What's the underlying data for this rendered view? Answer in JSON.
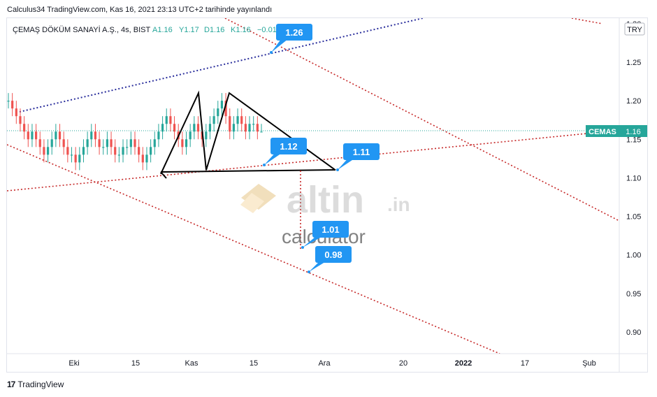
{
  "header": {
    "publish_line": "Calculus34 TradingView.com, Kas 16, 2021 23:13 UTC+2 tarihinde yayınlandı"
  },
  "footer": {
    "logo": "17",
    "brand": "TradingView"
  },
  "currency_badge": "TRY",
  "price_tag": {
    "symbol": "CEMAS",
    "value": "1.16"
  },
  "watermark": {
    "brand": "altin",
    "suffix": ".in",
    "sub": "calculator"
  },
  "colors": {
    "up": "#26a69a",
    "down": "#ef5350",
    "callout": "#2196f3",
    "trend_blue": "#2a2e9c",
    "trend_red": "#c62828",
    "price_line": "#26a69a"
  },
  "chart_data": {
    "type": "candlestick",
    "title": "ÇEMAŞ DÖKÜM SANAYİ A.Ş., 4s, BIST",
    "ohlc": {
      "open": "A1.16",
      "high": "Y1.17",
      "low": "D1.16",
      "close": "K1.16",
      "change": "−0.01"
    },
    "y_ticks": [
      "1.30",
      "1.25",
      "1.20",
      "1.15",
      "1.10",
      "1.05",
      "1.00",
      "0.95",
      "0.90"
    ],
    "x_ticks": [
      "Eki",
      "15",
      "Kas",
      "15",
      "Ara",
      "20",
      "2022",
      "17",
      "Şub"
    ],
    "ylim": [
      0.87,
      1.31
    ],
    "last_price": 1.16,
    "annotations": [
      {
        "label": "1.26",
        "value": 1.26
      },
      {
        "label": "1.12",
        "value": 1.12
      },
      {
        "label": "1.11",
        "value": 1.11
      },
      {
        "label": "1.01",
        "value": 1.01
      },
      {
        "label": "0.98",
        "value": 0.98
      }
    ],
    "pattern_points": [
      1.105,
      1.21,
      1.11,
      1.21,
      1.11
    ],
    "candles": [
      [
        1.2,
        1.21,
        1.19,
        1.2
      ],
      [
        1.2,
        1.21,
        1.18,
        1.19
      ],
      [
        1.19,
        1.2,
        1.17,
        1.18
      ],
      [
        1.18,
        1.19,
        1.16,
        1.17
      ],
      [
        1.17,
        1.18,
        1.15,
        1.16
      ],
      [
        1.16,
        1.17,
        1.14,
        1.15
      ],
      [
        1.15,
        1.17,
        1.14,
        1.16
      ],
      [
        1.16,
        1.17,
        1.14,
        1.15
      ],
      [
        1.15,
        1.16,
        1.13,
        1.14
      ],
      [
        1.14,
        1.15,
        1.12,
        1.13
      ],
      [
        1.13,
        1.15,
        1.12,
        1.14
      ],
      [
        1.14,
        1.16,
        1.13,
        1.15
      ],
      [
        1.15,
        1.17,
        1.14,
        1.16
      ],
      [
        1.16,
        1.17,
        1.14,
        1.15
      ],
      [
        1.15,
        1.16,
        1.13,
        1.14
      ],
      [
        1.14,
        1.15,
        1.12,
        1.13
      ],
      [
        1.13,
        1.14,
        1.12,
        1.13
      ],
      [
        1.13,
        1.14,
        1.11,
        1.12
      ],
      [
        1.12,
        1.14,
        1.11,
        1.13
      ],
      [
        1.13,
        1.15,
        1.12,
        1.14
      ],
      [
        1.14,
        1.16,
        1.13,
        1.15
      ],
      [
        1.15,
        1.17,
        1.14,
        1.16
      ],
      [
        1.16,
        1.17,
        1.14,
        1.15
      ],
      [
        1.15,
        1.16,
        1.13,
        1.14
      ],
      [
        1.14,
        1.15,
        1.13,
        1.14
      ],
      [
        1.14,
        1.16,
        1.13,
        1.15
      ],
      [
        1.15,
        1.16,
        1.13,
        1.14
      ],
      [
        1.14,
        1.15,
        1.12,
        1.13
      ],
      [
        1.13,
        1.14,
        1.12,
        1.13
      ],
      [
        1.13,
        1.15,
        1.12,
        1.14
      ],
      [
        1.14,
        1.15,
        1.13,
        1.14
      ],
      [
        1.14,
        1.16,
        1.13,
        1.15
      ],
      [
        1.15,
        1.16,
        1.13,
        1.14
      ],
      [
        1.14,
        1.15,
        1.12,
        1.13
      ],
      [
        1.13,
        1.14,
        1.11,
        1.12
      ],
      [
        1.12,
        1.14,
        1.11,
        1.13
      ],
      [
        1.13,
        1.15,
        1.12,
        1.14
      ],
      [
        1.14,
        1.16,
        1.13,
        1.15
      ],
      [
        1.15,
        1.17,
        1.14,
        1.16
      ],
      [
        1.16,
        1.18,
        1.15,
        1.17
      ],
      [
        1.17,
        1.19,
        1.16,
        1.18
      ],
      [
        1.18,
        1.19,
        1.16,
        1.17
      ],
      [
        1.17,
        1.18,
        1.15,
        1.16
      ],
      [
        1.16,
        1.17,
        1.14,
        1.15
      ],
      [
        1.15,
        1.16,
        1.13,
        1.14
      ],
      [
        1.14,
        1.16,
        1.13,
        1.15
      ],
      [
        1.15,
        1.17,
        1.14,
        1.16
      ],
      [
        1.16,
        1.18,
        1.15,
        1.17
      ],
      [
        1.17,
        1.18,
        1.15,
        1.16
      ],
      [
        1.16,
        1.17,
        1.14,
        1.15
      ],
      [
        1.15,
        1.17,
        1.14,
        1.16
      ],
      [
        1.16,
        1.18,
        1.15,
        1.17
      ],
      [
        1.17,
        1.19,
        1.16,
        1.18
      ],
      [
        1.18,
        1.2,
        1.17,
        1.19
      ],
      [
        1.19,
        1.21,
        1.18,
        1.2
      ],
      [
        1.2,
        1.21,
        1.17,
        1.18
      ],
      [
        1.18,
        1.19,
        1.15,
        1.16
      ],
      [
        1.16,
        1.18,
        1.15,
        1.17
      ],
      [
        1.17,
        1.19,
        1.16,
        1.18
      ],
      [
        1.18,
        1.19,
        1.16,
        1.17
      ],
      [
        1.17,
        1.18,
        1.15,
        1.16
      ],
      [
        1.16,
        1.18,
        1.15,
        1.17
      ],
      [
        1.17,
        1.18,
        1.16,
        1.17
      ],
      [
        1.17,
        1.18,
        1.15,
        1.16
      ],
      [
        1.16,
        1.17,
        1.16,
        1.16
      ]
    ]
  }
}
